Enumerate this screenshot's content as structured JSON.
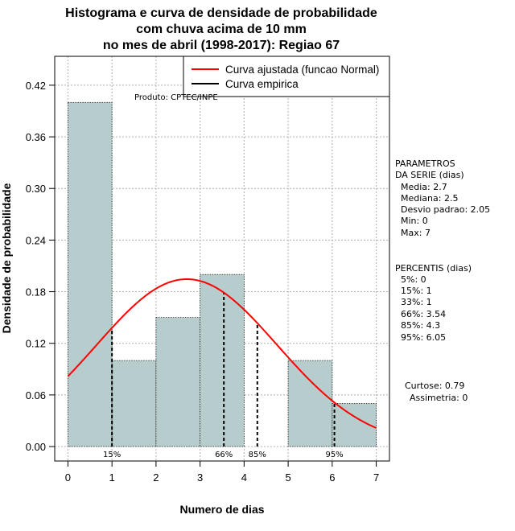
{
  "chart_data": {
    "type": "bar",
    "title_lines": [
      "Histograma e curva de densidade de probabilidade",
      "com chuva acima de 10 mm",
      "no mes de abril (1998-2017): Regiao 67"
    ],
    "xlabel": "Numero de dias",
    "ylabel": "Densidade de probabilidade",
    "xlim": [
      -0.3,
      7.3
    ],
    "ylim": [
      -0.0168,
      0.4536
    ],
    "xticks": [
      "0",
      "1",
      "2",
      "3",
      "4",
      "5",
      "6",
      "7"
    ],
    "yticks": [
      "0.00",
      "0.06",
      "0.12",
      "0.18",
      "0.24",
      "0.30",
      "0.36",
      "0.42"
    ],
    "grid": true,
    "bins": [
      {
        "start": 0,
        "end": 1,
        "density": 0.4
      },
      {
        "start": 1,
        "end": 2,
        "density": 0.1
      },
      {
        "start": 2,
        "end": 3,
        "density": 0.15
      },
      {
        "start": 3,
        "end": 4,
        "density": 0.2
      },
      {
        "start": 4,
        "end": 5,
        "density": 0.0
      },
      {
        "start": 5,
        "end": 6,
        "density": 0.1
      },
      {
        "start": 6,
        "end": 7,
        "density": 0.05
      }
    ],
    "normal_fit": {
      "mean": 2.7,
      "sd": 2.05,
      "x_range": [
        0,
        7
      ],
      "color": "#ff0000"
    },
    "bar_color": "#b7cccc",
    "percentile_lines": [
      {
        "x": 1,
        "label": "15%"
      },
      {
        "x": 3.54,
        "label": "66%"
      },
      {
        "x": 4.3,
        "label": "85%"
      },
      {
        "x": 6.05,
        "label": "95%"
      }
    ],
    "legend": {
      "position": "top-right",
      "entries": [
        {
          "label": "Curva ajustada (funcao Normal)",
          "color": "#ff0000"
        },
        {
          "label": "Curva empirica",
          "color": "#000000"
        }
      ]
    },
    "credit": "Produto: CPTEC/INPE",
    "side_panel": {
      "params_title": [
        "PARAMETROS",
        "DA SERIE (dias)"
      ],
      "params": [
        "Media: 2.7",
        "Mediana: 2.5",
        "Desvio padrao: 2.05",
        "Min: 0",
        "Max: 7"
      ],
      "percentiles_title": "PERCENTIS (dias)",
      "percentiles": [
        "5%: 0",
        "15%: 1",
        "33%: 1",
        "66%: 3.54",
        "85%: 4.3",
        "95%: 6.05"
      ],
      "kurtosis": "Curtose: 0.79",
      "skewness": "Assimetria: 0"
    }
  }
}
